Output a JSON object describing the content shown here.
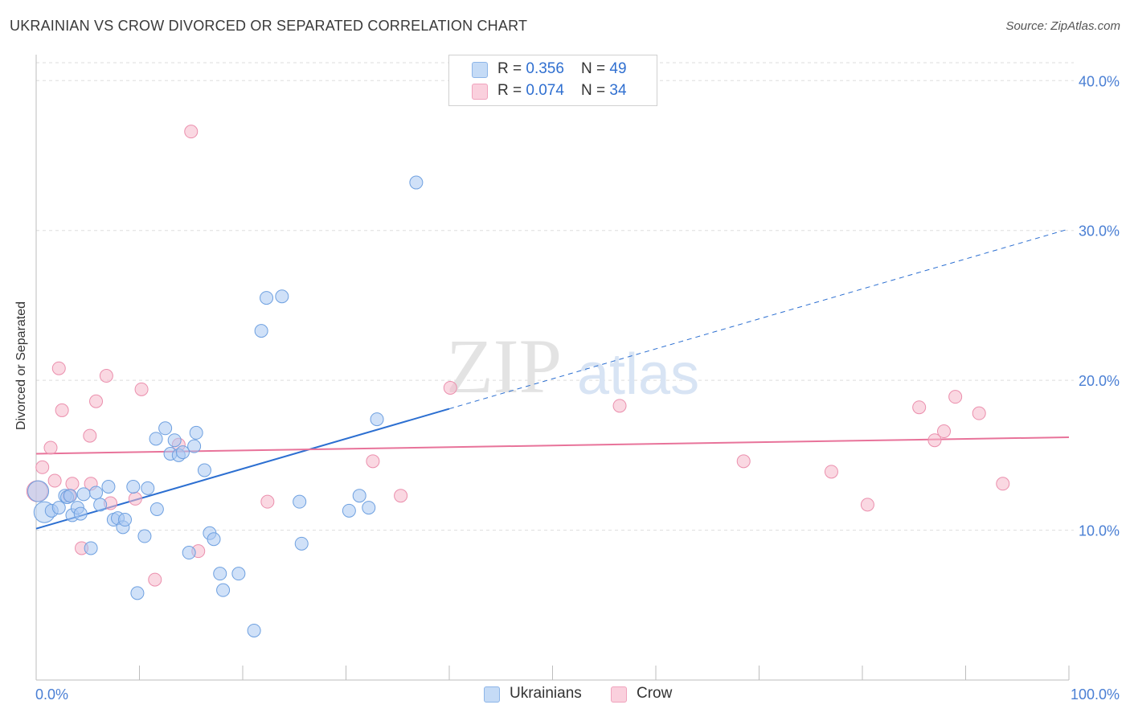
{
  "header": {
    "title": "UKRAINIAN VS CROW DIVORCED OR SEPARATED CORRELATION CHART",
    "source": "Source: ZipAtlas.com"
  },
  "watermark": {
    "zip": "ZIP",
    "atlas": "atlas"
  },
  "legend": {
    "rows": [
      {
        "r_label": "R = ",
        "r_value": "0.356",
        "n_label": "N = ",
        "n_value": "49",
        "color": "#a9c9f2"
      },
      {
        "r_label": "R = ",
        "r_value": "0.074",
        "n_label": "N = ",
        "n_value": "34",
        "color": "#f6b8cb"
      }
    ]
  },
  "bottom_legend": {
    "items": [
      {
        "label": "Ukrainians"
      },
      {
        "label": "Crow"
      }
    ]
  },
  "colors": {
    "blue_fill": "#a9c9f2",
    "blue_stroke": "#6ea0e0",
    "blue_line": "#2c6fd1",
    "pink_fill": "#f6b8cb",
    "pink_stroke": "#eb8fad",
    "pink_line": "#e8739a",
    "tick_text": "#4a7fd4",
    "grid": "#dedede"
  },
  "chart_data": {
    "type": "scatter",
    "title": "UKRAINIAN VS CROW DIVORCED OR SEPARATED CORRELATION CHART",
    "xlabel": "",
    "ylabel": "Divorced or Separated",
    "xlim": [
      0,
      100
    ],
    "ylim": [
      0,
      42
    ],
    "x_tick_labels": [
      "0.0%",
      "100.0%"
    ],
    "y_ticks": [
      10,
      20,
      30,
      40
    ],
    "y_tick_labels": [
      "10.0%",
      "20.0%",
      "30.0%",
      "40.0%"
    ],
    "series": [
      {
        "name": "Ukrainians",
        "r": 0.356,
        "n": 49,
        "trend": {
          "x0": 0,
          "y0": 10.1,
          "x1": 40,
          "y1": 18.1,
          "x_dashed_end": 100,
          "y_dashed_end": 30.1
        },
        "points": [
          {
            "x": 0.2,
            "y": 12.6,
            "big": true
          },
          {
            "x": 0.8,
            "y": 11.2,
            "big": true
          },
          {
            "x": 1.5,
            "y": 11.3
          },
          {
            "x": 2.2,
            "y": 11.5
          },
          {
            "x": 2.8,
            "y": 12.3
          },
          {
            "x": 3.0,
            "y": 12.2
          },
          {
            "x": 3.3,
            "y": 12.3
          },
          {
            "x": 3.5,
            "y": 11.0
          },
          {
            "x": 4.0,
            "y": 11.5
          },
          {
            "x": 4.3,
            "y": 11.1
          },
          {
            "x": 4.6,
            "y": 12.4
          },
          {
            "x": 5.3,
            "y": 8.8
          },
          {
            "x": 5.8,
            "y": 12.5
          },
          {
            "x": 6.2,
            "y": 11.7
          },
          {
            "x": 7.0,
            "y": 12.9
          },
          {
            "x": 7.5,
            "y": 10.7
          },
          {
            "x": 7.9,
            "y": 10.8
          },
          {
            "x": 8.4,
            "y": 10.2
          },
          {
            "x": 8.6,
            "y": 10.7
          },
          {
            "x": 9.4,
            "y": 12.9
          },
          {
            "x": 9.8,
            "y": 5.8
          },
          {
            "x": 10.5,
            "y": 9.6
          },
          {
            "x": 10.8,
            "y": 12.8
          },
          {
            "x": 11.7,
            "y": 11.4
          },
          {
            "x": 11.6,
            "y": 16.1
          },
          {
            "x": 12.5,
            "y": 16.8
          },
          {
            "x": 13.0,
            "y": 15.1
          },
          {
            "x": 13.4,
            "y": 16.0
          },
          {
            "x": 13.8,
            "y": 15.0
          },
          {
            "x": 14.2,
            "y": 15.2
          },
          {
            "x": 14.8,
            "y": 8.5
          },
          {
            "x": 15.3,
            "y": 15.6
          },
          {
            "x": 15.5,
            "y": 16.5
          },
          {
            "x": 16.3,
            "y": 14.0
          },
          {
            "x": 16.8,
            "y": 9.8
          },
          {
            "x": 17.2,
            "y": 9.4
          },
          {
            "x": 17.8,
            "y": 7.1
          },
          {
            "x": 18.1,
            "y": 6.0
          },
          {
            "x": 19.6,
            "y": 7.1
          },
          {
            "x": 21.1,
            "y": 3.3
          },
          {
            "x": 21.8,
            "y": 23.3
          },
          {
            "x": 22.3,
            "y": 25.5
          },
          {
            "x": 23.8,
            "y": 25.6
          },
          {
            "x": 25.5,
            "y": 11.9
          },
          {
            "x": 25.7,
            "y": 9.1
          },
          {
            "x": 30.3,
            "y": 11.3
          },
          {
            "x": 31.3,
            "y": 12.3
          },
          {
            "x": 32.2,
            "y": 11.5
          },
          {
            "x": 33.0,
            "y": 17.4
          },
          {
            "x": 36.8,
            "y": 33.2
          }
        ]
      },
      {
        "name": "Crow",
        "r": 0.074,
        "n": 34,
        "trend": {
          "x0": 0,
          "y0": 15.1,
          "x1": 100,
          "y1": 16.2
        },
        "points": [
          {
            "x": 0.1,
            "y": 12.6,
            "big": true
          },
          {
            "x": 0.6,
            "y": 14.2
          },
          {
            "x": 1.4,
            "y": 15.5
          },
          {
            "x": 1.8,
            "y": 13.3
          },
          {
            "x": 2.2,
            "y": 20.8
          },
          {
            "x": 2.5,
            "y": 18.0
          },
          {
            "x": 3.2,
            "y": 12.3
          },
          {
            "x": 3.5,
            "y": 13.1
          },
          {
            "x": 4.4,
            "y": 8.8
          },
          {
            "x": 5.2,
            "y": 16.3
          },
          {
            "x": 5.3,
            "y": 13.1
          },
          {
            "x": 5.8,
            "y": 18.6
          },
          {
            "x": 6.8,
            "y": 20.3
          },
          {
            "x": 7.2,
            "y": 11.8
          },
          {
            "x": 9.6,
            "y": 12.1
          },
          {
            "x": 10.2,
            "y": 19.4
          },
          {
            "x": 11.5,
            "y": 6.7
          },
          {
            "x": 13.8,
            "y": 15.7
          },
          {
            "x": 15.0,
            "y": 36.6
          },
          {
            "x": 15.7,
            "y": 8.6
          },
          {
            "x": 22.4,
            "y": 11.9
          },
          {
            "x": 32.6,
            "y": 14.6
          },
          {
            "x": 35.3,
            "y": 12.3
          },
          {
            "x": 40.1,
            "y": 19.5
          },
          {
            "x": 56.5,
            "y": 18.3
          },
          {
            "x": 68.5,
            "y": 14.6
          },
          {
            "x": 77.0,
            "y": 13.9
          },
          {
            "x": 80.5,
            "y": 11.7
          },
          {
            "x": 85.5,
            "y": 18.2
          },
          {
            "x": 87.0,
            "y": 16.0
          },
          {
            "x": 87.9,
            "y": 16.6
          },
          {
            "x": 89.0,
            "y": 18.9
          },
          {
            "x": 91.3,
            "y": 17.8
          },
          {
            "x": 93.6,
            "y": 13.1
          }
        ]
      }
    ]
  }
}
